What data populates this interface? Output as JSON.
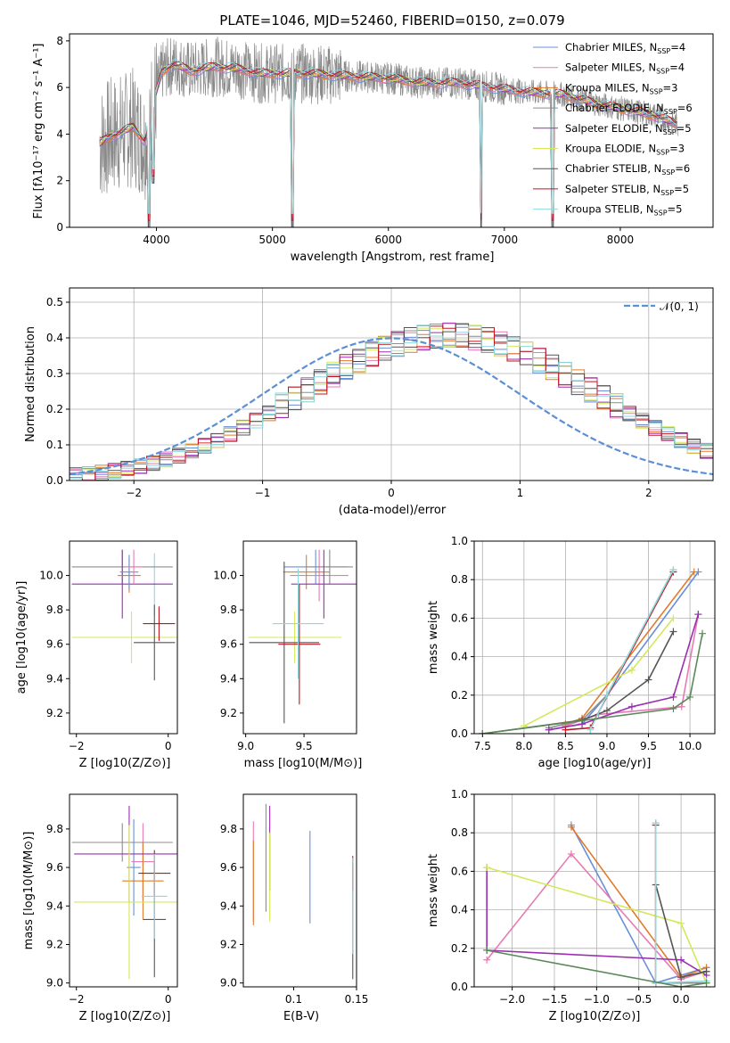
{
  "title": "PLATE=1046, MJD=52460, FIBERID=0150, z=0.079",
  "colors": {
    "Chabrier MILES": "#6a8fd8",
    "Salpeter MILES": "#e77bb3",
    "Kroupa MILES": "#e07b2c",
    "Chabrier ELODIE": "#8c8c8c",
    "Salpeter ELODIE": "#9a2fb0",
    "Kroupa ELODIE": "#d4e85a",
    "Chabrier STELIB": "#555555",
    "Salpeter STELIB": "#c0141e",
    "Kroupa STELIB": "#8dd9df"
  },
  "chart_data": [
    {
      "id": "spectrum",
      "type": "line",
      "xlabel": "wavelength [Angstrom, rest frame]",
      "ylabel": "Flux [f_λ 10^-17 erg cm^-2 s^-1 A^-1]",
      "xlim": [
        3250,
        8800
      ],
      "ylim": [
        0,
        8.3
      ],
      "xticks": [
        "4000",
        "5000",
        "6000",
        "7000",
        "8000"
      ],
      "yticks": [
        "0",
        "2",
        "4",
        "6",
        "8"
      ],
      "legend_position": "top-right",
      "data_color": "#8a8a8a",
      "continuum": [
        [
          3510,
          3.6
        ],
        [
          3600,
          3.9
        ],
        [
          3700,
          4.1
        ],
        [
          3800,
          4.3
        ],
        [
          3900,
          3.7
        ],
        [
          3950,
          5.0
        ],
        [
          4050,
          6.7
        ],
        [
          4150,
          7.0
        ],
        [
          4300,
          6.7
        ],
        [
          4500,
          6.9
        ],
        [
          4700,
          6.8
        ],
        [
          4900,
          6.6
        ],
        [
          5100,
          6.6
        ],
        [
          5300,
          6.6
        ],
        [
          5600,
          6.5
        ],
        [
          6000,
          6.4
        ],
        [
          6300,
          6.2
        ],
        [
          6600,
          6.2
        ],
        [
          6900,
          6.0
        ],
        [
          7200,
          5.8
        ],
        [
          7500,
          5.7
        ],
        [
          7800,
          5.3
        ],
        [
          8100,
          5.0
        ],
        [
          8300,
          4.8
        ],
        [
          8500,
          4.4
        ]
      ],
      "dips": [
        [
          3933,
          0.0
        ],
        [
          5175,
          0.0
        ],
        [
          6800,
          0.0
        ],
        [
          7415,
          0.0
        ],
        [
          3970,
          1.9
        ]
      ],
      "legend": [
        {
          "label": "Chabrier MILES, N",
          "sub": "SSP",
          "val": "=4"
        },
        {
          "label": "Salpeter MILES, N",
          "sub": "SSP",
          "val": "=4"
        },
        {
          "label": "Kroupa MILES, N",
          "sub": "SSP",
          "val": "=3"
        },
        {
          "label": "Chabrier ELODIE, N",
          "sub": "SSP",
          "val": "=6"
        },
        {
          "label": "Salpeter ELODIE, N",
          "sub": "SSP",
          "val": "=5"
        },
        {
          "label": "Kroupa ELODIE, N",
          "sub": "SSP",
          "val": "=3"
        },
        {
          "label": "Chabrier STELIB, N",
          "sub": "SSP",
          "val": "=6"
        },
        {
          "label": "Salpeter STELIB, N",
          "sub": "SSP",
          "val": "=5"
        },
        {
          "label": "Kroupa STELIB, N",
          "sub": "SSP",
          "val": "=5"
        }
      ]
    },
    {
      "id": "residuals",
      "type": "line",
      "xlabel": "(data-model)/error",
      "ylabel": "Normed distribution",
      "xlim": [
        -2.5,
        2.5
      ],
      "ylim": [
        0,
        0.54
      ],
      "xticks": [
        "−2",
        "−1",
        "0",
        "1",
        "2"
      ],
      "yticks": [
        "0.0",
        "0.1",
        "0.2",
        "0.3",
        "0.4",
        "0.5"
      ],
      "grid": true,
      "legend": "𝒩(0, 1)",
      "legend_position": "top-right",
      "bin_width": 0.1,
      "base": [
        0.016,
        0.018,
        0.022,
        0.027,
        0.033,
        0.04,
        0.049,
        0.059,
        0.07,
        0.083,
        0.097,
        0.113,
        0.13,
        0.148,
        0.168,
        0.188,
        0.21,
        0.232,
        0.254,
        0.276,
        0.297,
        0.318,
        0.337,
        0.355,
        0.37,
        0.383,
        0.394,
        0.401,
        0.406,
        0.408,
        0.406,
        0.401,
        0.394,
        0.383,
        0.37,
        0.355,
        0.337,
        0.318,
        0.297,
        0.276,
        0.254,
        0.232,
        0.21,
        0.188,
        0.168,
        0.148,
        0.13,
        0.113,
        0.097,
        0.083
      ]
    },
    {
      "id": "z-age",
      "type": "scatter",
      "xlabel": "Z [log10(Z/Z⊙)]",
      "ylabel": "age [log10(age/yr)]",
      "xlim": [
        -2.15,
        0.2
      ],
      "ylim": [
        9.08,
        10.2
      ],
      "xticks": [
        "−2",
        "0"
      ],
      "yticks": [
        "9.2",
        "9.4",
        "9.6",
        "9.8",
        "10.0"
      ],
      "points": [
        {
          "c": "Kroupa STELIB",
          "x": -0.3,
          "xerr": 0.04,
          "y": 9.95,
          "yerr": 0.18
        },
        {
          "c": "Kroupa ELODIE",
          "x": -0.8,
          "xerr": 1.3,
          "y": 9.64,
          "yerr": 0.15
        },
        {
          "c": "Chabrier ELODIE",
          "x": -1.0,
          "xerr": 1.1,
          "y": 10.05,
          "yerr": 0.1
        },
        {
          "c": "Salpeter ELODIE",
          "x": -1.0,
          "xerr": 1.1,
          "y": 9.95,
          "yerr": 0.2
        },
        {
          "c": "Chabrier STELIB",
          "x": -0.3,
          "xerr": 0.45,
          "y": 9.61,
          "yerr": 0.22
        },
        {
          "c": "Salpeter STELIB",
          "x": -0.2,
          "xerr": 0.35,
          "y": 9.72,
          "yerr": 0.1
        },
        {
          "c": "Kroupa MILES",
          "x": -0.85,
          "xerr": 0.25,
          "y": 10.0,
          "yerr": 0.1
        },
        {
          "c": "Chabrier MILES",
          "x": -0.85,
          "xerr": 0.2,
          "y": 10.02,
          "yerr": 0.1
        },
        {
          "c": "Salpeter MILES",
          "x": -0.75,
          "xerr": 0.2,
          "y": 10.05,
          "yerr": 0.1
        }
      ]
    },
    {
      "id": "mass-age",
      "type": "scatter",
      "xlabel": "mass [log10(M/M⊙)]",
      "ylabel": "",
      "xlim": [
        8.98,
        9.95
      ],
      "ylim": [
        9.08,
        10.2
      ],
      "xticks": [
        "9.0",
        "9.5"
      ],
      "yticks": [
        "9.2",
        "9.4",
        "9.6",
        "9.8",
        "10.0"
      ],
      "points": [
        {
          "c": "Chabrier MILES",
          "x": 9.6,
          "xerr": 0.27,
          "y": 10.05,
          "yerr": 0.1
        },
        {
          "c": "Salpeter MILES",
          "x": 9.63,
          "xerr": 0.25,
          "y": 10.0,
          "yerr": 0.15
        },
        {
          "c": "Kroupa MILES",
          "x": 9.52,
          "xerr": 0.2,
          "y": 10.02,
          "yerr": 0.1
        },
        {
          "c": "Chabrier ELODIE",
          "x": 9.72,
          "xerr": 0.2,
          "y": 10.05,
          "yerr": 0.1
        },
        {
          "c": "Salpeter ELODIE",
          "x": 9.67,
          "xerr": 0.28,
          "y": 9.95,
          "yerr": 0.2
        },
        {
          "c": "Kroupa ELODIE",
          "x": 9.42,
          "xerr": 0.4,
          "y": 9.64,
          "yerr": 0.15
        },
        {
          "c": "Chabrier STELIB",
          "x": 9.33,
          "xerr": 0.3,
          "y": 9.61,
          "yerr": 0.47
        },
        {
          "c": "Salpeter STELIB",
          "x": 9.46,
          "xerr": 0.18,
          "y": 9.6,
          "yerr": 0.35
        },
        {
          "c": "Kroupa STELIB",
          "x": 9.45,
          "xerr": 0.22,
          "y": 9.72,
          "yerr": 0.32
        }
      ]
    },
    {
      "id": "age-weight",
      "type": "line",
      "xlabel": "age [log10(age/yr)]",
      "ylabel": "mass weight",
      "xlim": [
        7.4,
        10.3
      ],
      "ylim": [
        0,
        1.0
      ],
      "xticks": [
        "7.5",
        "8.0",
        "8.5",
        "9.0",
        "9.5",
        "10.0"
      ],
      "yticks": [
        "0.0",
        "0.2",
        "0.4",
        "0.6",
        "0.8",
        "1.0"
      ],
      "grid": true,
      "series": [
        {
          "c": "Chabrier MILES",
          "pts": [
            [
              8.3,
              0.02
            ],
            [
              8.7,
              0.05
            ],
            [
              9.0,
              0.2
            ],
            [
              10.1,
              0.84
            ]
          ]
        },
        {
          "c": "Salpeter MILES",
          "pts": [
            [
              8.5,
              0.04
            ],
            [
              8.9,
              0.1
            ],
            [
              9.9,
              0.14
            ],
            [
              10.1,
              0.62
            ]
          ]
        },
        {
          "c": "Kroupa MILES",
          "pts": [
            [
              8.5,
              0.05
            ],
            [
              8.7,
              0.08
            ],
            [
              10.05,
              0.84
            ]
          ]
        },
        {
          "c": "Chabrier ELODIE",
          "pts": [
            [
              8.3,
              0.03
            ],
            [
              8.7,
              0.07
            ],
            [
              9.0,
              0.2
            ],
            [
              9.8,
              0.85
            ]
          ]
        },
        {
          "c": "Salpeter ELODIE",
          "pts": [
            [
              8.3,
              0.02
            ],
            [
              8.7,
              0.05
            ],
            [
              9.3,
              0.14
            ],
            [
              9.8,
              0.19
            ],
            [
              10.1,
              0.62
            ]
          ]
        },
        {
          "c": "Kroupa ELODIE",
          "pts": [
            [
              8.0,
              0.04
            ],
            [
              9.3,
              0.33
            ],
            [
              9.8,
              0.6
            ]
          ]
        },
        {
          "c": "Chabrier STELIB",
          "pts": [
            [
              7.5,
              0.0
            ],
            [
              8.7,
              0.07
            ],
            [
              9.0,
              0.12
            ],
            [
              9.5,
              0.28
            ],
            [
              9.8,
              0.53
            ]
          ]
        },
        {
          "c": "Salpeter STELIB",
          "pts": [
            [
              8.5,
              0.02
            ],
            [
              8.8,
              0.03
            ],
            [
              9.8,
              0.84
            ]
          ]
        },
        {
          "c": "Kroupa STELIB",
          "pts": [
            [
              8.8,
              0.02
            ],
            [
              9.0,
              0.2
            ],
            [
              9.8,
              0.85
            ]
          ]
        },
        {
          "c": "green",
          "pts": [
            [
              7.5,
              0.0
            ],
            [
              9.8,
              0.13
            ],
            [
              10.0,
              0.19
            ],
            [
              10.15,
              0.52
            ]
          ]
        }
      ]
    },
    {
      "id": "z-mass",
      "type": "scatter",
      "xlabel": "Z [log10(Z/Z⊙)]",
      "ylabel": "mass [log10(M/M⊙)]",
      "xlim": [
        -2.15,
        0.2
      ],
      "ylim": [
        8.98,
        9.98
      ],
      "xticks": [
        "−2",
        "0"
      ],
      "yticks": [
        "9.0",
        "9.2",
        "9.4",
        "9.6",
        "9.8"
      ],
      "points": [
        {
          "c": "Chabrier MILES",
          "x": -0.75,
          "xerr": 0.15,
          "y": 9.6,
          "yerr": 0.25
        },
        {
          "c": "Salpeter MILES",
          "x": -0.55,
          "xerr": 0.25,
          "y": 9.63,
          "yerr": 0.2
        },
        {
          "c": "Kroupa MILES",
          "x": -0.55,
          "xerr": 0.45,
          "y": 9.53,
          "yerr": 0.2
        },
        {
          "c": "Chabrier ELODIE",
          "x": -1.0,
          "xerr": 1.1,
          "y": 9.73,
          "yerr": 0.1
        },
        {
          "c": "Salpeter ELODIE",
          "x": -0.85,
          "xerr": 1.2,
          "y": 9.67,
          "yerr": 0.25
        },
        {
          "c": "Kroupa ELODIE",
          "x": -0.85,
          "xerr": 1.2,
          "y": 9.42,
          "yerr": 0.4
        },
        {
          "c": "Chabrier STELIB",
          "x": -0.3,
          "xerr": 0.25,
          "y": 9.33,
          "yerr": 0.3
        },
        {
          "c": "Salpeter STELIB",
          "x": -0.3,
          "xerr": 0.35,
          "y": 9.57,
          "yerr": 0.12
        },
        {
          "c": "Kroupa STELIB",
          "x": -0.3,
          "xerr": 0.28,
          "y": 9.45,
          "yerr": 0.22
        }
      ]
    },
    {
      "id": "ebv-mass",
      "type": "scatter",
      "xlabel": "E(B-V)",
      "ylabel": "",
      "xlim": [
        0.06,
        0.15
      ],
      "ylim": [
        8.98,
        9.98
      ],
      "xticks": [
        "0.1",
        "0.15"
      ],
      "yticks": [
        "9.0",
        "9.2",
        "9.4",
        "9.6",
        "9.8"
      ],
      "points": [
        {
          "c": "Chabrier MILES",
          "x": 0.113,
          "xerr": 0,
          "y": 9.55,
          "yerr": 0.24
        },
        {
          "c": "Salpeter MILES",
          "x": 0.068,
          "xerr": 0,
          "y": 9.58,
          "yerr": 0.26
        },
        {
          "c": "Kroupa MILES",
          "x": 0.068,
          "xerr": 0,
          "y": 9.52,
          "yerr": 0.22
        },
        {
          "c": "Chabrier ELODIE",
          "x": 0.078,
          "xerr": 0,
          "y": 9.65,
          "yerr": 0.28
        },
        {
          "c": "Salpeter ELODIE",
          "x": 0.081,
          "xerr": 0,
          "y": 9.7,
          "yerr": 0.22
        },
        {
          "c": "Kroupa ELODIE",
          "x": 0.081,
          "xerr": 0,
          "y": 9.55,
          "yerr": 0.23
        },
        {
          "c": "Chabrier STELIB",
          "x": 0.147,
          "xerr": 0,
          "y": 9.32,
          "yerr": 0.3
        },
        {
          "c": "Salpeter STELIB",
          "x": 0.147,
          "xerr": 0,
          "y": 9.57,
          "yerr": 0.09
        },
        {
          "c": "Kroupa STELIB",
          "x": 0.147,
          "xerr": 0,
          "y": 9.4,
          "yerr": 0.25
        }
      ]
    },
    {
      "id": "z-weight",
      "type": "line",
      "xlabel": "Z [log10(Z/Z⊙)]",
      "ylabel": "mass weight",
      "xlim": [
        -2.45,
        0.4
      ],
      "ylim": [
        0,
        1.0
      ],
      "xticks": [
        "−2.0",
        "−1.5",
        "−1.0",
        "−0.5",
        "0.0"
      ],
      "yticks": [
        "0.0",
        "0.2",
        "0.4",
        "0.6",
        "0.8",
        "1.0"
      ],
      "grid": true,
      "series": [
        {
          "c": "Chabrier MILES",
          "pts": [
            [
              -1.3,
              0.84
            ],
            [
              -0.3,
              0.02
            ],
            [
              0.3,
              0.1
            ]
          ]
        },
        {
          "c": "Salpeter MILES",
          "pts": [
            [
              -2.3,
              0.14
            ],
            [
              -1.3,
              0.69
            ],
            [
              0.0,
              0.04
            ],
            [
              0.3,
              0.08
            ]
          ]
        },
        {
          "c": "Kroupa MILES",
          "pts": [
            [
              -1.3,
              0.83
            ],
            [
              0.0,
              0.05
            ],
            [
              0.3,
              0.1
            ]
          ]
        },
        {
          "c": "Chabrier ELODIE",
          "pts": [
            [
              -0.3,
              0.85
            ],
            [
              -0.3,
              0.02
            ],
            [
              0.3,
              0.02
            ]
          ]
        },
        {
          "c": "Salpeter ELODIE",
          "pts": [
            [
              -2.3,
              0.62
            ],
            [
              -2.3,
              0.19
            ],
            [
              0.0,
              0.14
            ],
            [
              0.3,
              0.06
            ]
          ]
        },
        {
          "c": "Kroupa ELODIE",
          "pts": [
            [
              -2.3,
              0.62
            ],
            [
              0.0,
              0.33
            ],
            [
              0.3,
              0.02
            ]
          ]
        },
        {
          "c": "Chabrier STELIB",
          "pts": [
            [
              -0.3,
              0.53
            ],
            [
              0.0,
              0.05
            ],
            [
              0.3,
              0.08
            ]
          ]
        },
        {
          "c": "Salpeter STELIB",
          "pts": [
            [
              -0.3,
              0.84
            ],
            [
              -0.3,
              0.02
            ]
          ]
        },
        {
          "c": "Kroupa STELIB",
          "pts": [
            [
              -0.3,
              0.85
            ],
            [
              -0.3,
              0.02
            ],
            [
              0.3,
              0.03
            ]
          ]
        },
        {
          "c": "green",
          "pts": [
            [
              -2.3,
              0.19
            ],
            [
              0.0,
              0.0
            ],
            [
              0.3,
              0.02
            ]
          ]
        }
      ]
    }
  ]
}
